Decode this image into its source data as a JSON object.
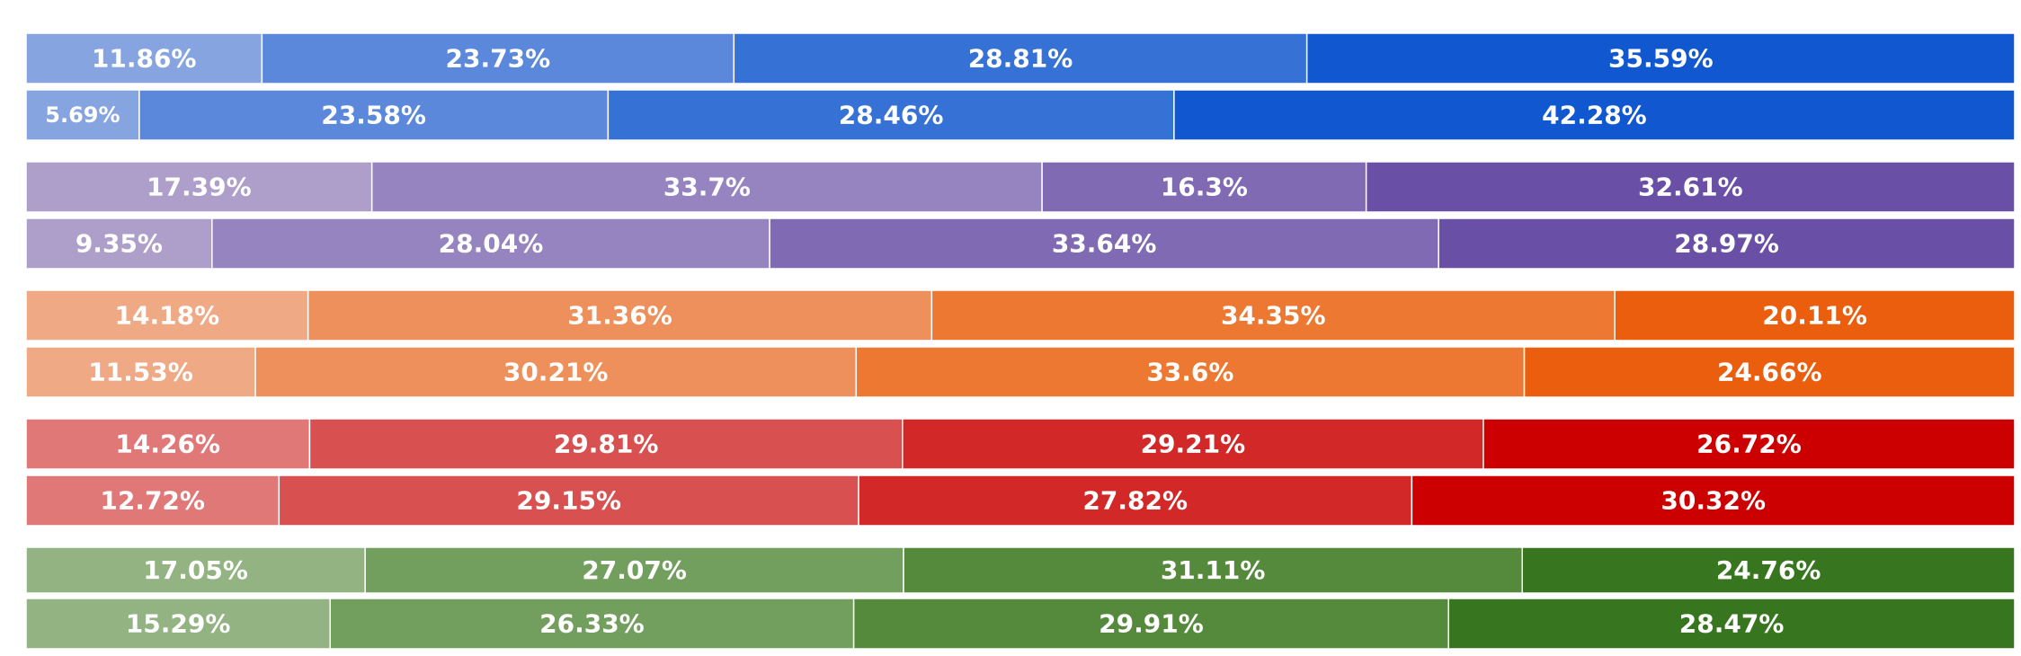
{
  "chart_data": {
    "type": "bar",
    "orientation": "horizontal",
    "stacked": true,
    "normalized": true,
    "title": "",
    "xlabel": "",
    "ylabel": "",
    "xlim": [
      0,
      100
    ],
    "grid": false,
    "legend": "none",
    "groups": [
      {
        "colors": [
          "#86a4e0",
          "#5b88db",
          "#3672d6",
          "#1158d0"
        ],
        "rows": [
          {
            "values": [
              11.86,
              23.73,
              28.81,
              35.59
            ],
            "labels": [
              "11.86%",
              "23.73%",
              "28.81%",
              "35.59%"
            ]
          },
          {
            "values": [
              5.69,
              23.58,
              28.46,
              42.28
            ],
            "labels": [
              "5.69%",
              "23.58%",
              "28.46%",
              "42.28%"
            ]
          }
        ]
      },
      {
        "colors": [
          "#ae9fca",
          "#9684c0",
          "#806ab3",
          "#694fa6"
        ],
        "rows": [
          {
            "values": [
              17.39,
              33.7,
              16.3,
              32.61
            ],
            "labels": [
              "17.39%",
              "33.7%",
              "16.3%",
              "32.61%"
            ]
          },
          {
            "values": [
              9.35,
              28.04,
              33.64,
              28.97
            ],
            "labels": [
              "9.35%",
              "28.04%",
              "33.64%",
              "28.97%"
            ]
          }
        ]
      },
      {
        "colors": [
          "#efa985",
          "#ee905b",
          "#ec7832",
          "#ea5e0e"
        ],
        "rows": [
          {
            "values": [
              14.18,
              31.36,
              34.35,
              20.11
            ],
            "labels": [
              "14.18%",
              "31.36%",
              "34.35%",
              "20.11%"
            ]
          },
          {
            "values": [
              11.53,
              30.21,
              33.6,
              24.66
            ],
            "labels": [
              "11.53%",
              "30.21%",
              "33.6%",
              "24.66%"
            ]
          }
        ]
      },
      {
        "colors": [
          "#e07878",
          "#d95050",
          "#d22828",
          "#cc0000"
        ],
        "rows": [
          {
            "values": [
              14.26,
              29.81,
              29.21,
              26.72
            ],
            "labels": [
              "14.26%",
              "29.81%",
              "29.21%",
              "26.72%"
            ]
          },
          {
            "values": [
              12.72,
              29.15,
              27.82,
              30.32
            ],
            "labels": [
              "12.72%",
              "29.15%",
              "27.82%",
              "30.32%"
            ]
          }
        ]
      },
      {
        "colors": [
          "#93b383",
          "#739f5e",
          "#558a3d",
          "#37761e"
        ],
        "rows": [
          {
            "values": [
              17.05,
              27.07,
              31.11,
              24.76
            ],
            "labels": [
              "17.05%",
              "27.07%",
              "31.11%",
              "24.76%"
            ]
          },
          {
            "values": [
              15.29,
              26.33,
              29.91,
              28.47
            ],
            "labels": [
              "15.29%",
              "26.33%",
              "29.91%",
              "28.47%"
            ]
          }
        ]
      }
    ]
  }
}
